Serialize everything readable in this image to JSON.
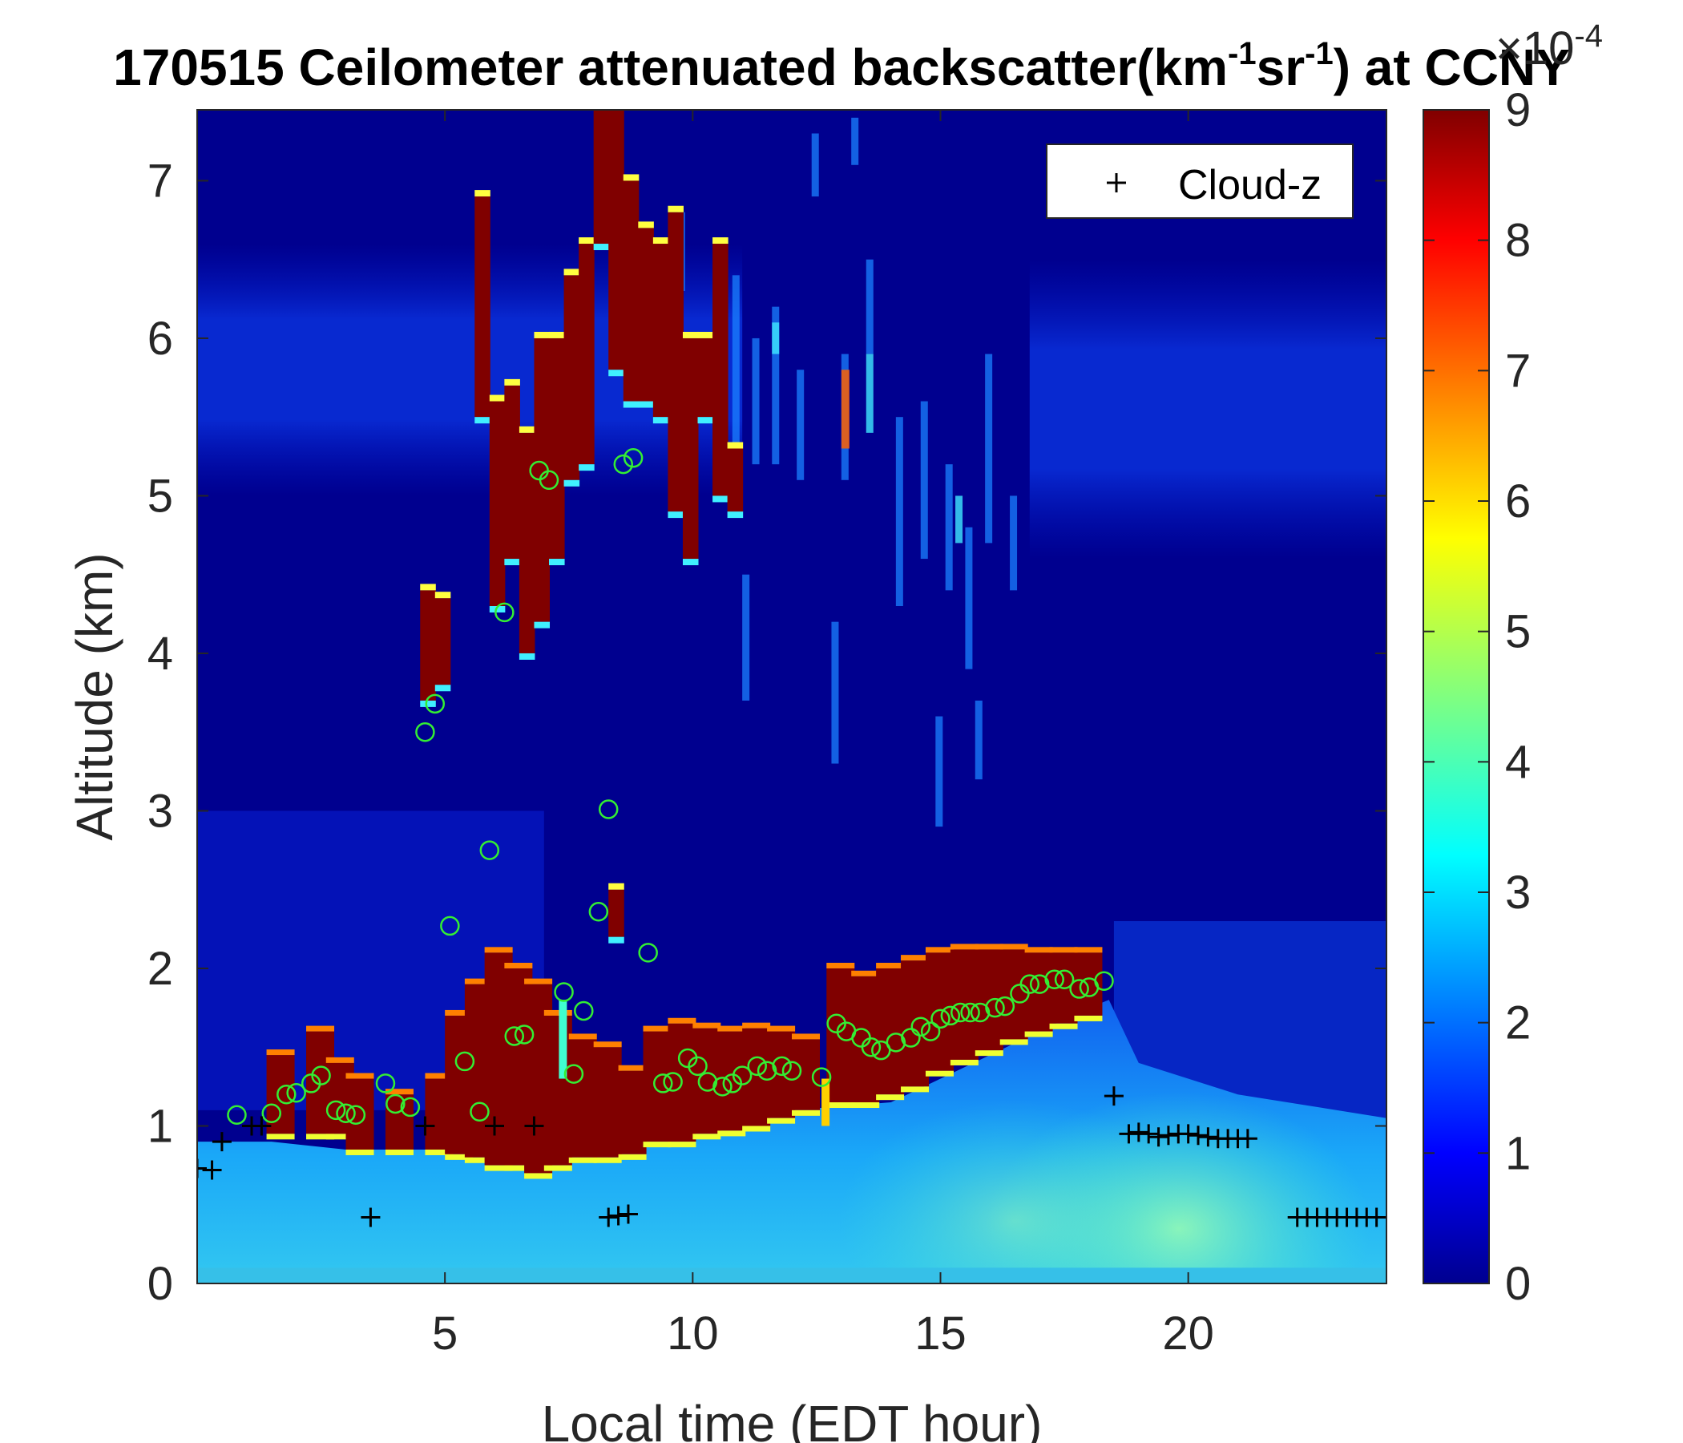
{
  "title": {
    "prefix": "170515 Ceilometer attenuated backscatter(km",
    "sup1": "-1",
    "mid": "sr",
    "sup2": "-1",
    "suffix": ") at CCNY"
  },
  "colorbar": {
    "multiplier_base": "×10",
    "multiplier_exp": "-4",
    "ticks": [
      "0",
      "1",
      "2",
      "3",
      "4",
      "5",
      "6",
      "7",
      "8",
      "9"
    ]
  },
  "colors": {
    "background_low": "#00008f",
    "saturated": "#800000",
    "high_marker": "#33ee33",
    "cloud_marker": "#000000"
  },
  "chart_data": {
    "type": "heatmap",
    "title": "170515 Ceilometer attenuated backscatter(km-1sr-1) at CCNY",
    "xlabel": "Local time (EDT hour)",
    "ylabel": "Altitude (km)",
    "xlim": [
      0,
      24
    ],
    "ylim": [
      0,
      7.45
    ],
    "xticks": [
      5,
      10,
      15,
      20
    ],
    "xtick_labels": [
      "5",
      "10",
      "15",
      "20"
    ],
    "yticks": [
      0,
      1,
      2,
      3,
      4,
      5,
      6,
      7
    ],
    "ytick_labels": [
      "0",
      "1",
      "2",
      "3",
      "4",
      "5",
      "6",
      "7"
    ],
    "colorbar_range": [
      0,
      9
    ],
    "colorbar_scale": "×10^-4",
    "colormap": "jet",
    "legend": {
      "position": "top-right",
      "entries": [
        "Cloud-z"
      ]
    },
    "cloud_z": [
      [
        0.0,
        0.73
      ],
      [
        0.3,
        0.72
      ],
      [
        0.5,
        0.9
      ],
      [
        1.1,
        1.0
      ],
      [
        1.3,
        1.0
      ],
      [
        3.5,
        0.42
      ],
      [
        4.6,
        1.0
      ],
      [
        6.0,
        1.0
      ],
      [
        6.8,
        1.0
      ],
      [
        8.3,
        0.42
      ],
      [
        8.5,
        0.43
      ],
      [
        8.7,
        0.44
      ],
      [
        18.5,
        1.19
      ],
      [
        18.8,
        0.95
      ],
      [
        19.0,
        0.96
      ],
      [
        19.2,
        0.95
      ],
      [
        19.4,
        0.93
      ],
      [
        19.6,
        0.94
      ],
      [
        19.8,
        0.95
      ],
      [
        20.0,
        0.95
      ],
      [
        20.2,
        0.94
      ],
      [
        20.4,
        0.93
      ],
      [
        20.6,
        0.92
      ],
      [
        20.8,
        0.92
      ],
      [
        21.0,
        0.92
      ],
      [
        21.2,
        0.92
      ],
      [
        22.2,
        0.42
      ],
      [
        22.4,
        0.42
      ],
      [
        22.6,
        0.42
      ],
      [
        22.8,
        0.42
      ],
      [
        23.0,
        0.42
      ],
      [
        23.2,
        0.42
      ],
      [
        23.4,
        0.42
      ],
      [
        23.6,
        0.42
      ],
      [
        23.8,
        0.42
      ]
    ],
    "green_circles": [
      [
        0.8,
        1.07
      ],
      [
        1.5,
        1.08
      ],
      [
        1.8,
        1.2
      ],
      [
        2.0,
        1.21
      ],
      [
        2.3,
        1.27
      ],
      [
        2.5,
        1.32
      ],
      [
        2.8,
        1.1
      ],
      [
        3.0,
        1.08
      ],
      [
        3.2,
        1.07
      ],
      [
        3.8,
        1.27
      ],
      [
        4.0,
        1.14
      ],
      [
        4.3,
        1.12
      ],
      [
        4.6,
        3.5
      ],
      [
        4.8,
        3.68
      ],
      [
        5.1,
        2.27
      ],
      [
        5.4,
        1.41
      ],
      [
        5.7,
        1.09
      ],
      [
        5.9,
        2.75
      ],
      [
        6.2,
        4.26
      ],
      [
        6.4,
        1.57
      ],
      [
        6.6,
        1.58
      ],
      [
        6.9,
        5.16
      ],
      [
        7.1,
        5.1
      ],
      [
        7.4,
        1.85
      ],
      [
        7.6,
        1.33
      ],
      [
        7.8,
        1.73
      ],
      [
        8.1,
        2.36
      ],
      [
        8.3,
        3.01
      ],
      [
        8.6,
        5.2
      ],
      [
        8.8,
        5.24
      ],
      [
        9.1,
        2.1
      ],
      [
        9.4,
        1.27
      ],
      [
        9.6,
        1.28
      ],
      [
        9.9,
        1.43
      ],
      [
        10.1,
        1.38
      ],
      [
        10.3,
        1.28
      ],
      [
        10.6,
        1.25
      ],
      [
        10.8,
        1.27
      ],
      [
        11.0,
        1.32
      ],
      [
        11.3,
        1.38
      ],
      [
        11.5,
        1.35
      ],
      [
        11.8,
        1.38
      ],
      [
        12.0,
        1.35
      ],
      [
        12.6,
        1.31
      ],
      [
        12.9,
        1.65
      ],
      [
        13.1,
        1.6
      ],
      [
        13.4,
        1.56
      ],
      [
        13.6,
        1.5
      ],
      [
        13.8,
        1.48
      ],
      [
        14.1,
        1.53
      ],
      [
        14.4,
        1.56
      ],
      [
        14.6,
        1.63
      ],
      [
        14.8,
        1.6
      ],
      [
        15.0,
        1.68
      ],
      [
        15.2,
        1.7
      ],
      [
        15.4,
        1.72
      ],
      [
        15.6,
        1.72
      ],
      [
        15.8,
        1.72
      ],
      [
        16.1,
        1.75
      ],
      [
        16.3,
        1.76
      ],
      [
        16.6,
        1.84
      ],
      [
        16.8,
        1.9
      ],
      [
        17.0,
        1.9
      ],
      [
        17.3,
        1.93
      ],
      [
        17.5,
        1.93
      ],
      [
        17.8,
        1.87
      ],
      [
        18.0,
        1.88
      ],
      [
        18.3,
        1.92
      ]
    ]
  }
}
